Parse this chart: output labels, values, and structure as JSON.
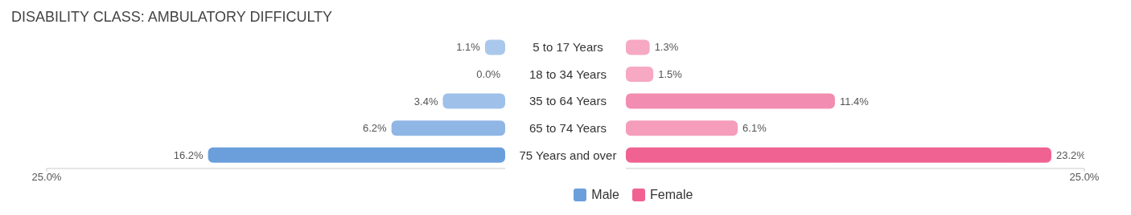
{
  "chart_data": [
    {
      "type": "bar",
      "orientation": "horizontal",
      "title": "DISABILITY CLASS: AMBULATORY DIFFICULTY",
      "categories": [
        "5 to 17 Years",
        "18 to 34 Years",
        "35 to 64 Years",
        "65 to 74 Years",
        "75 Years and over"
      ],
      "series": [
        {
          "name": "Male",
          "color": "#6a9fdc",
          "colors": [
            "#aac8ec",
            "#aac8ec",
            "#9ec0e9",
            "#8fb6e4",
            "#6a9fdc"
          ],
          "values": [
            1.1,
            0.0,
            3.4,
            6.2,
            16.2
          ],
          "value_labels": [
            "1.1%",
            "0.0%",
            "3.4%",
            "6.2%",
            "16.2%"
          ]
        }
      ],
      "xlim": [
        25,
        0
      ],
      "xticks": [
        {
          "value": 25,
          "label": "25.0%"
        }
      ],
      "legend": "bottom right"
    },
    {
      "type": "bar",
      "orientation": "horizontal",
      "categories": [
        null,
        null,
        null,
        null,
        null
      ],
      "series": [
        {
          "name": "Female",
          "color": "#f06292",
          "colors": [
            "#f7a8c3",
            "#f7a8c3",
            "#f28cb0",
            "#f59dbb",
            "#f06292"
          ],
          "values": [
            1.3,
            1.5,
            11.4,
            6.1,
            23.2
          ],
          "value_labels": [
            "1.3%",
            "1.5%",
            "11.4%",
            "6.1%",
            "23.2%"
          ]
        }
      ],
      "xlim": [
        0,
        25
      ],
      "xticks": [
        {
          "value": 25,
          "label": "25.0%"
        }
      ],
      "legend": "bottom left",
      "tick_labels": "x"
    }
  ]
}
